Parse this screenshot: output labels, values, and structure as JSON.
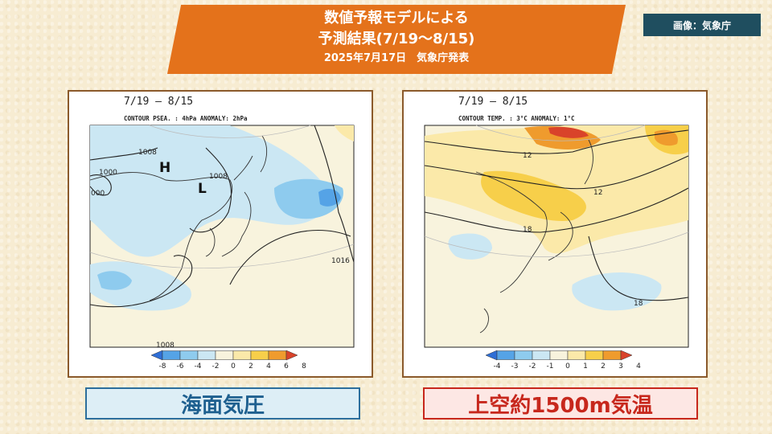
{
  "header": {
    "title_line1": "数値予報モデルによる",
    "title_line2": "予測結果(7/19～8/15)",
    "title_line3": "2025年7月17日　気象庁発表",
    "credit": "画像：気象庁"
  },
  "left_map": {
    "period": "7/19  ‒  8/15",
    "contour_info": "CONTOUR PSEA. :  4hPa     ANOMALY:  2hPa",
    "high_label": "H",
    "low_label": "L",
    "isobars": [
      "1008",
      "1000",
      "000",
      "1008",
      "1016",
      "1008"
    ],
    "colorbar_ticks": [
      "-8",
      "-6",
      "-4",
      "-2",
      "0",
      "2",
      "4",
      "6",
      "8"
    ],
    "colorbar_colors": [
      "#2f6fd6",
      "#55a3e6",
      "#8ecbee",
      "#cbe7f3",
      "#f8f3dd",
      "#fbe9a9",
      "#f7cf4a",
      "#ef9b2d",
      "#d9432a"
    ],
    "caption": "海面気圧"
  },
  "right_map": {
    "period": "7/19  ‒  8/15",
    "contour_info": "CONTOUR TEMP. :  3°C     ANOMALY:  1°C",
    "isotherms": [
      "12",
      "12",
      "18",
      "18"
    ],
    "colorbar_ticks": [
      "-4",
      "-3",
      "-2",
      "-1",
      "0",
      "1",
      "2",
      "3",
      "4"
    ],
    "colorbar_colors": [
      "#2f6fd6",
      "#55a3e6",
      "#8ecbee",
      "#cbe7f3",
      "#f8f3dd",
      "#fbe9a9",
      "#f7cf4a",
      "#ef9b2d",
      "#d9432a"
    ],
    "caption": "上空約1500m気温"
  }
}
